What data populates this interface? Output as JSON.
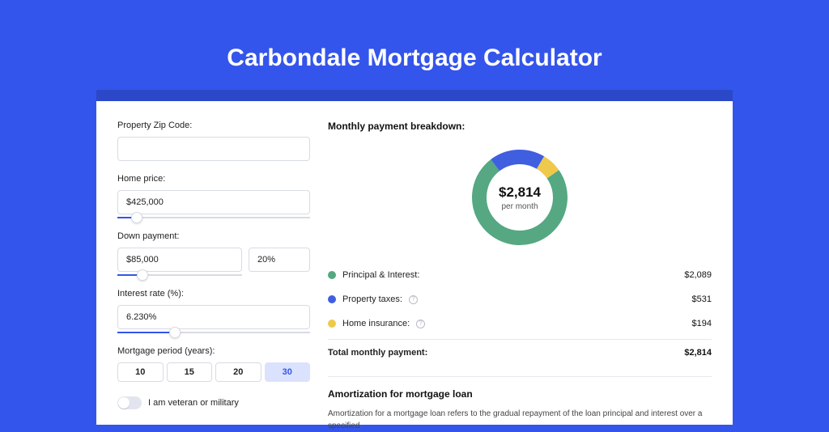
{
  "page": {
    "title": "Carbondale Mortgage Calculator",
    "background_color": "#3455eb",
    "panel_shadow_color": "#2b48c8",
    "panel_color": "#ffffff"
  },
  "form": {
    "zip": {
      "label": "Property Zip Code:",
      "value": ""
    },
    "home_price": {
      "label": "Home price:",
      "value": "$425,000",
      "slider_pct": 10
    },
    "down_payment": {
      "label": "Down payment:",
      "amount": "$85,000",
      "pct": "20%",
      "slider_pct": 20
    },
    "interest_rate": {
      "label": "Interest rate (%):",
      "value": "6.230%",
      "slider_pct": 30
    },
    "period": {
      "label": "Mortgage period (years):",
      "options": [
        "10",
        "15",
        "20",
        "30"
      ],
      "selected_index": 3
    },
    "veteran": {
      "label": "I am veteran or military",
      "checked": false
    }
  },
  "breakdown": {
    "title": "Monthly payment breakdown:",
    "donut": {
      "amount": "$2,814",
      "subtitle": "per month",
      "segments": [
        {
          "key": "principal_interest",
          "value": 2089,
          "pct": 74.2,
          "color": "#55a882"
        },
        {
          "key": "property_taxes",
          "value": 531,
          "pct": 18.9,
          "color": "#3f5fe0"
        },
        {
          "key": "home_insurance",
          "value": 194,
          "pct": 6.9,
          "color": "#efc94c"
        }
      ],
      "stroke_width": 18
    },
    "rows": [
      {
        "label": "Principal & Interest:",
        "value": "$2,089",
        "color": "#55a882",
        "info": false
      },
      {
        "label": "Property taxes:",
        "value": "$531",
        "color": "#3f5fe0",
        "info": true
      },
      {
        "label": "Home insurance:",
        "value": "$194",
        "color": "#efc94c",
        "info": true
      }
    ],
    "total": {
      "label": "Total monthly payment:",
      "value": "$2,814"
    }
  },
  "amortization": {
    "title": "Amortization for mortgage loan",
    "text": "Amortization for a mortgage loan refers to the gradual repayment of the loan principal and interest over a specified"
  },
  "colors": {
    "slider_track": "#d8dbe4",
    "slider_fill": "#3455eb",
    "input_border": "#d8dbe4",
    "period_selected_bg": "#dbe2fd",
    "period_selected_fg": "#3455eb"
  }
}
